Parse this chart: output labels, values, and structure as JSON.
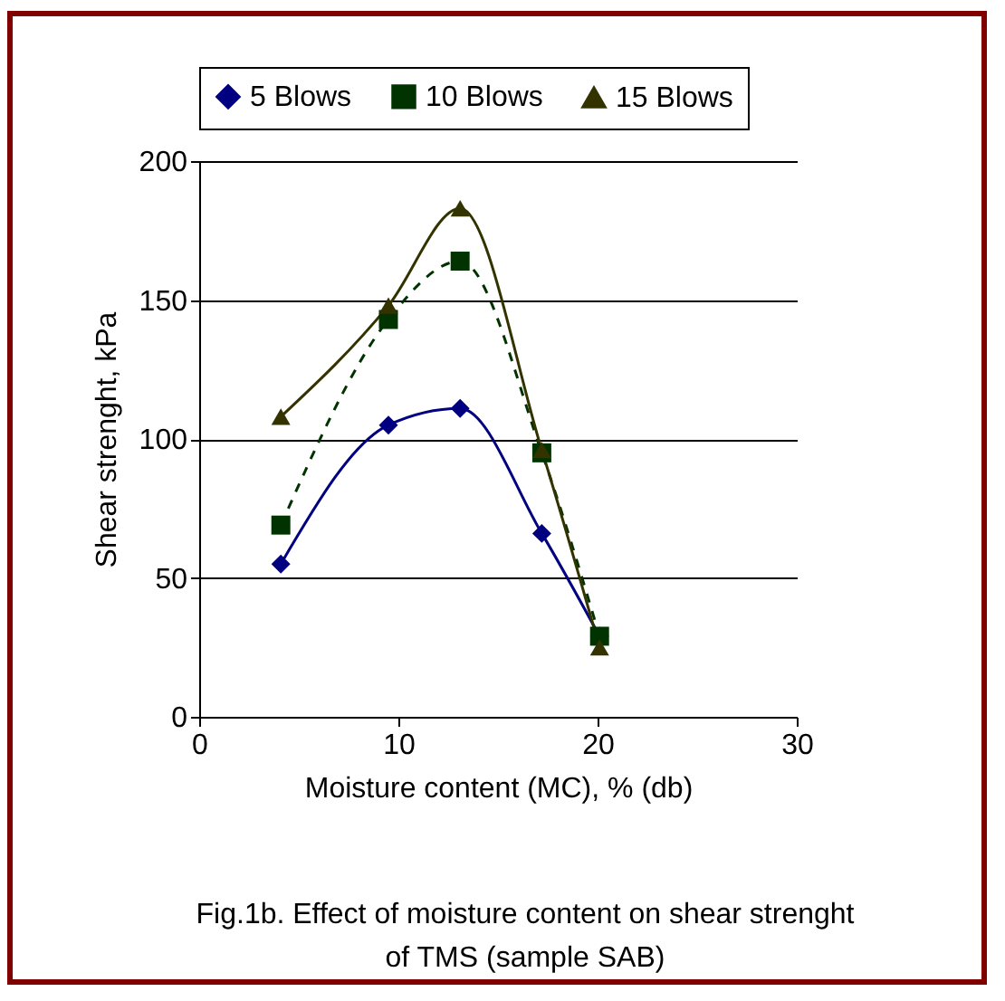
{
  "chart_data": {
    "type": "line",
    "xlabel": "Moisture content (MC), % (db)",
    "ylabel": "Shear strenght, kPa",
    "annotations": [
      "Fig.1b. Effect of moisture content on shear strenght of TMS (sample SAB)"
    ],
    "x": [
      4.1,
      9.5,
      13.1,
      17.2,
      20.1
    ],
    "series": [
      {
        "name": "5 Blows",
        "color": "#000080",
        "marker": "diamond",
        "line_style": "solid",
        "values": [
          55,
          105,
          111,
          66,
          29
        ]
      },
      {
        "name": "10 Blows",
        "color": "#003300",
        "marker": "square",
        "line_style": "dashed",
        "values": [
          69,
          143,
          164,
          95,
          29
        ]
      },
      {
        "name": "15 Blows",
        "color": "#333300",
        "marker": "triangle",
        "line_style": "solid",
        "values": [
          108,
          148,
          183,
          96,
          25
        ]
      }
    ],
    "xlim": [
      0,
      30
    ],
    "xticks": [
      0,
      10,
      20,
      30
    ],
    "ylim": [
      0,
      200
    ],
    "yticks": [
      0,
      50,
      100,
      150,
      200
    ],
    "grid": "y",
    "legend": "top"
  }
}
